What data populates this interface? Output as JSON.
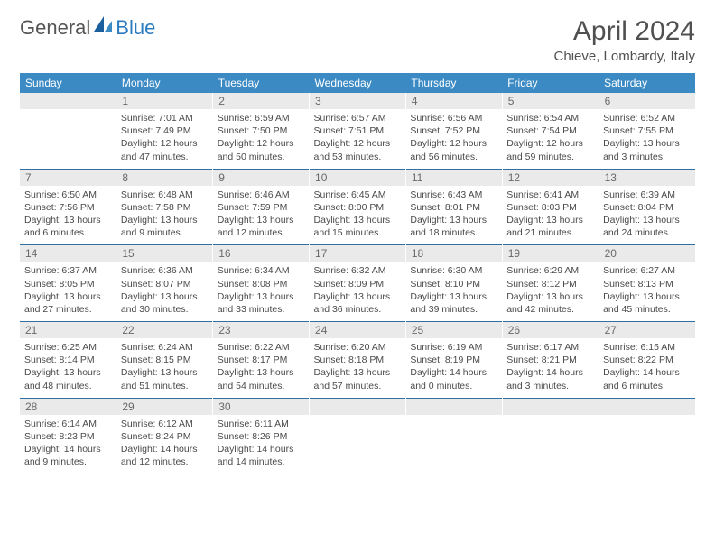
{
  "logo": {
    "part1": "General",
    "part2": "Blue"
  },
  "title": "April 2024",
  "location": "Chieve, Lombardy, Italy",
  "dow": [
    "Sunday",
    "Monday",
    "Tuesday",
    "Wednesday",
    "Thursday",
    "Friday",
    "Saturday"
  ],
  "colors": {
    "header_bg": "#3b8ac4",
    "header_text": "#ffffff",
    "daynum_bg": "#eaeaea",
    "daynum_text": "#6a6a6a",
    "row_border": "#2f6fa3",
    "body_text": "#4a4a4a",
    "logo_blue": "#2b7bbf"
  },
  "weeks": [
    [
      {
        "n": "",
        "sr": "",
        "ss": "",
        "dl1": "",
        "dl2": ""
      },
      {
        "n": "1",
        "sr": "Sunrise: 7:01 AM",
        "ss": "Sunset: 7:49 PM",
        "dl1": "Daylight: 12 hours",
        "dl2": "and 47 minutes."
      },
      {
        "n": "2",
        "sr": "Sunrise: 6:59 AM",
        "ss": "Sunset: 7:50 PM",
        "dl1": "Daylight: 12 hours",
        "dl2": "and 50 minutes."
      },
      {
        "n": "3",
        "sr": "Sunrise: 6:57 AM",
        "ss": "Sunset: 7:51 PM",
        "dl1": "Daylight: 12 hours",
        "dl2": "and 53 minutes."
      },
      {
        "n": "4",
        "sr": "Sunrise: 6:56 AM",
        "ss": "Sunset: 7:52 PM",
        "dl1": "Daylight: 12 hours",
        "dl2": "and 56 minutes."
      },
      {
        "n": "5",
        "sr": "Sunrise: 6:54 AM",
        "ss": "Sunset: 7:54 PM",
        "dl1": "Daylight: 12 hours",
        "dl2": "and 59 minutes."
      },
      {
        "n": "6",
        "sr": "Sunrise: 6:52 AM",
        "ss": "Sunset: 7:55 PM",
        "dl1": "Daylight: 13 hours",
        "dl2": "and 3 minutes."
      }
    ],
    [
      {
        "n": "7",
        "sr": "Sunrise: 6:50 AM",
        "ss": "Sunset: 7:56 PM",
        "dl1": "Daylight: 13 hours",
        "dl2": "and 6 minutes."
      },
      {
        "n": "8",
        "sr": "Sunrise: 6:48 AM",
        "ss": "Sunset: 7:58 PM",
        "dl1": "Daylight: 13 hours",
        "dl2": "and 9 minutes."
      },
      {
        "n": "9",
        "sr": "Sunrise: 6:46 AM",
        "ss": "Sunset: 7:59 PM",
        "dl1": "Daylight: 13 hours",
        "dl2": "and 12 minutes."
      },
      {
        "n": "10",
        "sr": "Sunrise: 6:45 AM",
        "ss": "Sunset: 8:00 PM",
        "dl1": "Daylight: 13 hours",
        "dl2": "and 15 minutes."
      },
      {
        "n": "11",
        "sr": "Sunrise: 6:43 AM",
        "ss": "Sunset: 8:01 PM",
        "dl1": "Daylight: 13 hours",
        "dl2": "and 18 minutes."
      },
      {
        "n": "12",
        "sr": "Sunrise: 6:41 AM",
        "ss": "Sunset: 8:03 PM",
        "dl1": "Daylight: 13 hours",
        "dl2": "and 21 minutes."
      },
      {
        "n": "13",
        "sr": "Sunrise: 6:39 AM",
        "ss": "Sunset: 8:04 PM",
        "dl1": "Daylight: 13 hours",
        "dl2": "and 24 minutes."
      }
    ],
    [
      {
        "n": "14",
        "sr": "Sunrise: 6:37 AM",
        "ss": "Sunset: 8:05 PM",
        "dl1": "Daylight: 13 hours",
        "dl2": "and 27 minutes."
      },
      {
        "n": "15",
        "sr": "Sunrise: 6:36 AM",
        "ss": "Sunset: 8:07 PM",
        "dl1": "Daylight: 13 hours",
        "dl2": "and 30 minutes."
      },
      {
        "n": "16",
        "sr": "Sunrise: 6:34 AM",
        "ss": "Sunset: 8:08 PM",
        "dl1": "Daylight: 13 hours",
        "dl2": "and 33 minutes."
      },
      {
        "n": "17",
        "sr": "Sunrise: 6:32 AM",
        "ss": "Sunset: 8:09 PM",
        "dl1": "Daylight: 13 hours",
        "dl2": "and 36 minutes."
      },
      {
        "n": "18",
        "sr": "Sunrise: 6:30 AM",
        "ss": "Sunset: 8:10 PM",
        "dl1": "Daylight: 13 hours",
        "dl2": "and 39 minutes."
      },
      {
        "n": "19",
        "sr": "Sunrise: 6:29 AM",
        "ss": "Sunset: 8:12 PM",
        "dl1": "Daylight: 13 hours",
        "dl2": "and 42 minutes."
      },
      {
        "n": "20",
        "sr": "Sunrise: 6:27 AM",
        "ss": "Sunset: 8:13 PM",
        "dl1": "Daylight: 13 hours",
        "dl2": "and 45 minutes."
      }
    ],
    [
      {
        "n": "21",
        "sr": "Sunrise: 6:25 AM",
        "ss": "Sunset: 8:14 PM",
        "dl1": "Daylight: 13 hours",
        "dl2": "and 48 minutes."
      },
      {
        "n": "22",
        "sr": "Sunrise: 6:24 AM",
        "ss": "Sunset: 8:15 PM",
        "dl1": "Daylight: 13 hours",
        "dl2": "and 51 minutes."
      },
      {
        "n": "23",
        "sr": "Sunrise: 6:22 AM",
        "ss": "Sunset: 8:17 PM",
        "dl1": "Daylight: 13 hours",
        "dl2": "and 54 minutes."
      },
      {
        "n": "24",
        "sr": "Sunrise: 6:20 AM",
        "ss": "Sunset: 8:18 PM",
        "dl1": "Daylight: 13 hours",
        "dl2": "and 57 minutes."
      },
      {
        "n": "25",
        "sr": "Sunrise: 6:19 AM",
        "ss": "Sunset: 8:19 PM",
        "dl1": "Daylight: 14 hours",
        "dl2": "and 0 minutes."
      },
      {
        "n": "26",
        "sr": "Sunrise: 6:17 AM",
        "ss": "Sunset: 8:21 PM",
        "dl1": "Daylight: 14 hours",
        "dl2": "and 3 minutes."
      },
      {
        "n": "27",
        "sr": "Sunrise: 6:15 AM",
        "ss": "Sunset: 8:22 PM",
        "dl1": "Daylight: 14 hours",
        "dl2": "and 6 minutes."
      }
    ],
    [
      {
        "n": "28",
        "sr": "Sunrise: 6:14 AM",
        "ss": "Sunset: 8:23 PM",
        "dl1": "Daylight: 14 hours",
        "dl2": "and 9 minutes."
      },
      {
        "n": "29",
        "sr": "Sunrise: 6:12 AM",
        "ss": "Sunset: 8:24 PM",
        "dl1": "Daylight: 14 hours",
        "dl2": "and 12 minutes."
      },
      {
        "n": "30",
        "sr": "Sunrise: 6:11 AM",
        "ss": "Sunset: 8:26 PM",
        "dl1": "Daylight: 14 hours",
        "dl2": "and 14 minutes."
      },
      {
        "n": "",
        "sr": "",
        "ss": "",
        "dl1": "",
        "dl2": ""
      },
      {
        "n": "",
        "sr": "",
        "ss": "",
        "dl1": "",
        "dl2": ""
      },
      {
        "n": "",
        "sr": "",
        "ss": "",
        "dl1": "",
        "dl2": ""
      },
      {
        "n": "",
        "sr": "",
        "ss": "",
        "dl1": "",
        "dl2": ""
      }
    ]
  ]
}
